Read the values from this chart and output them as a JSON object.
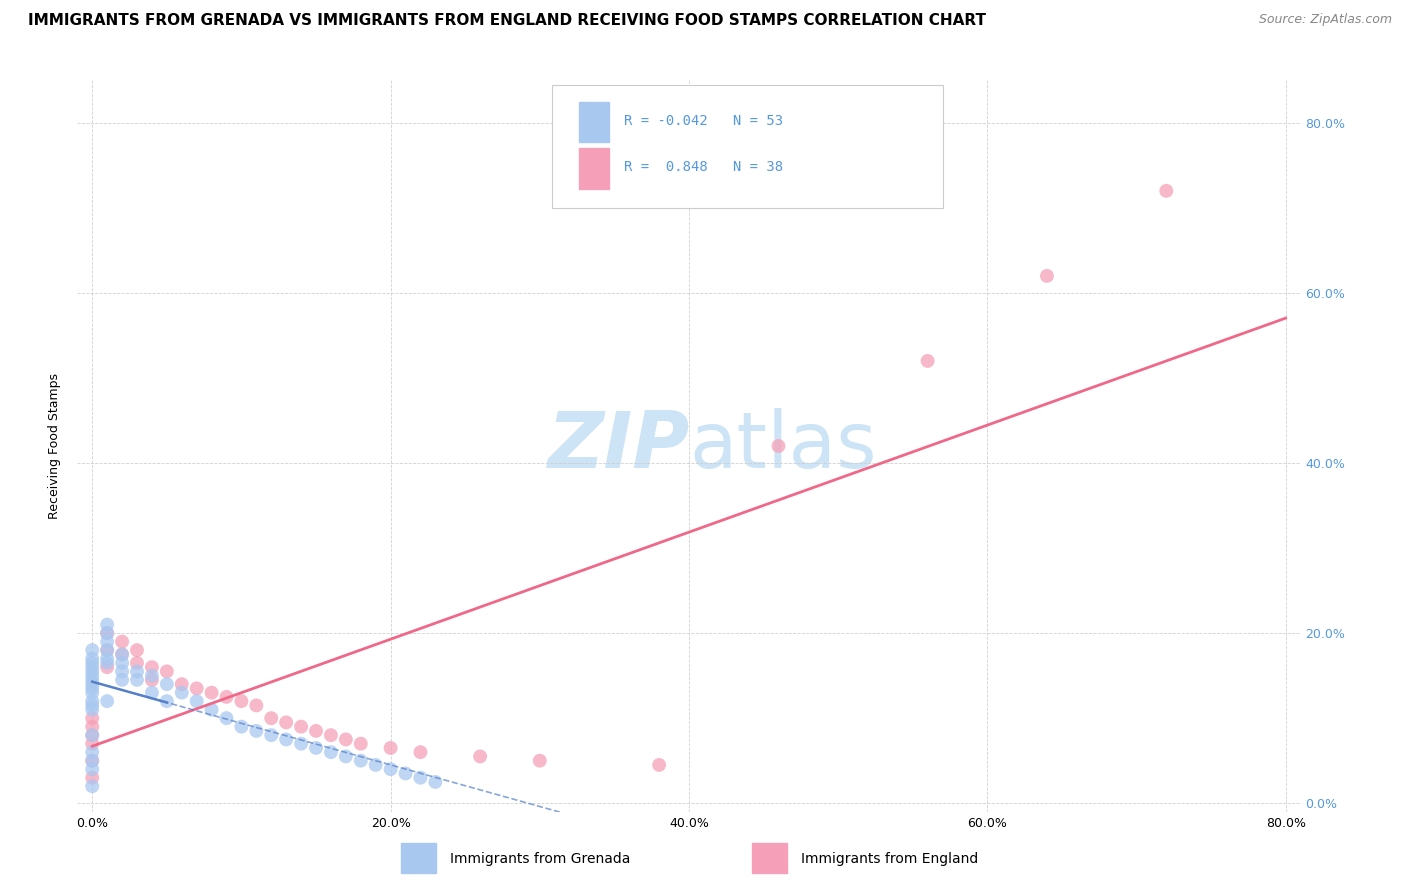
{
  "title": "IMMIGRANTS FROM GRENADA VS IMMIGRANTS FROM ENGLAND RECEIVING FOOD STAMPS CORRELATION CHART",
  "source": "Source: ZipAtlas.com",
  "ylabel": "Receiving Food Stamps",
  "legend_label1": "Immigrants from Grenada",
  "legend_label2": "Immigrants from England",
  "R_grenada": -0.042,
  "N_grenada": 53,
  "R_england": 0.848,
  "N_england": 38,
  "color_grenada": "#a8c8f0",
  "color_england": "#f5a0b8",
  "color_grenada_line": "#5580c8",
  "color_england_line": "#f06888",
  "background_color": "#ffffff",
  "grid_color": "#cccccc",
  "watermark_color": "#cce4f5",
  "title_fontsize": 11,
  "source_fontsize": 9,
  "axis_label_fontsize": 9,
  "tick_fontsize": 9,
  "legend_fontsize": 10,
  "right_tick_color": "#5599dd",
  "grenada_scatter_x": [
    0.0,
    0.0,
    0.0,
    0.0,
    0.0,
    0.0,
    0.0,
    0.0,
    0.0,
    0.0,
    0.0,
    0.0,
    0.0,
    0.0,
    0.0,
    0.0,
    0.0,
    0.0,
    0.01,
    0.01,
    0.01,
    0.01,
    0.01,
    0.01,
    0.01,
    0.02,
    0.02,
    0.02,
    0.02,
    0.03,
    0.03,
    0.04,
    0.04,
    0.05,
    0.05,
    0.06,
    0.07,
    0.08,
    0.09,
    0.1,
    0.11,
    0.12,
    0.13,
    0.14,
    0.15,
    0.16,
    0.17,
    0.18,
    0.19,
    0.2,
    0.21,
    0.22,
    0.23
  ],
  "grenada_scatter_y": [
    0.18,
    0.17,
    0.165,
    0.16,
    0.155,
    0.15,
    0.145,
    0.14,
    0.135,
    0.13,
    0.12,
    0.115,
    0.11,
    0.08,
    0.06,
    0.05,
    0.04,
    0.02,
    0.21,
    0.2,
    0.19,
    0.18,
    0.17,
    0.165,
    0.12,
    0.175,
    0.165,
    0.155,
    0.145,
    0.155,
    0.145,
    0.15,
    0.13,
    0.14,
    0.12,
    0.13,
    0.12,
    0.11,
    0.1,
    0.09,
    0.085,
    0.08,
    0.075,
    0.07,
    0.065,
    0.06,
    0.055,
    0.05,
    0.045,
    0.04,
    0.035,
    0.03,
    0.025
  ],
  "england_scatter_x": [
    0.0,
    0.0,
    0.0,
    0.0,
    0.0,
    0.0,
    0.01,
    0.01,
    0.01,
    0.02,
    0.02,
    0.03,
    0.03,
    0.04,
    0.04,
    0.05,
    0.06,
    0.07,
    0.08,
    0.09,
    0.1,
    0.11,
    0.12,
    0.13,
    0.14,
    0.15,
    0.16,
    0.17,
    0.18,
    0.2,
    0.22,
    0.26,
    0.3,
    0.38,
    0.46,
    0.56,
    0.64,
    0.72
  ],
  "england_scatter_y": [
    0.1,
    0.09,
    0.08,
    0.07,
    0.05,
    0.03,
    0.2,
    0.18,
    0.16,
    0.19,
    0.175,
    0.18,
    0.165,
    0.16,
    0.145,
    0.155,
    0.14,
    0.135,
    0.13,
    0.125,
    0.12,
    0.115,
    0.1,
    0.095,
    0.09,
    0.085,
    0.08,
    0.075,
    0.07,
    0.065,
    0.06,
    0.055,
    0.05,
    0.045,
    0.42,
    0.52,
    0.62,
    0.72
  ]
}
